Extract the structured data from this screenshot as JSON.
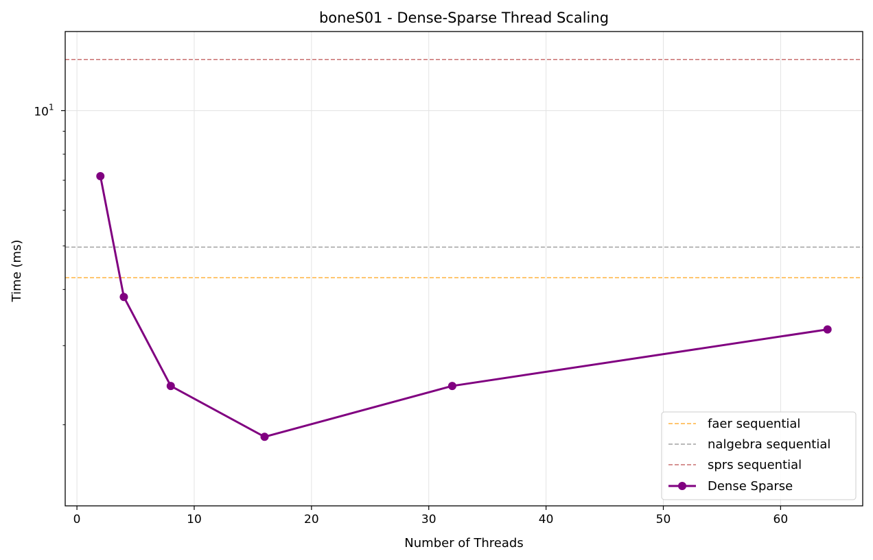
{
  "chart_data": {
    "type": "line",
    "title": "boneS01 - Dense-Sparse Thread Scaling",
    "xlabel": "Number of Threads",
    "ylabel": "Time (ms)",
    "xlim": [
      -1,
      67
    ],
    "ylim": [
      1.32,
      15.0
    ],
    "yscale": "log",
    "xticks": [
      0,
      10,
      20,
      30,
      40,
      50,
      60
    ],
    "xtick_labels": [
      "0",
      "10",
      "20",
      "30",
      "40",
      "50",
      "60"
    ],
    "ytick_major": [
      10
    ],
    "ytick_major_label": {
      "base": "10",
      "exp": "1"
    },
    "ytick_minor": [
      2,
      3,
      4,
      5,
      6,
      7,
      8,
      9
    ],
    "grid": true,
    "legend_position": "lower-right",
    "hlines": [
      {
        "name": "faer sequential",
        "value": 4.25,
        "color": "#ffb23e"
      },
      {
        "name": "nalgebra sequential",
        "value": 4.97,
        "color": "#a0a0a0"
      },
      {
        "name": "sprs sequential",
        "value": 13.0,
        "color": "#c86f6f"
      }
    ],
    "series": [
      {
        "name": "Dense Sparse",
        "color": "#800080",
        "x": [
          2,
          4,
          8,
          16,
          32,
          64
        ],
        "y": [
          7.15,
          3.85,
          2.44,
          1.88,
          2.44,
          3.26
        ]
      }
    ]
  }
}
